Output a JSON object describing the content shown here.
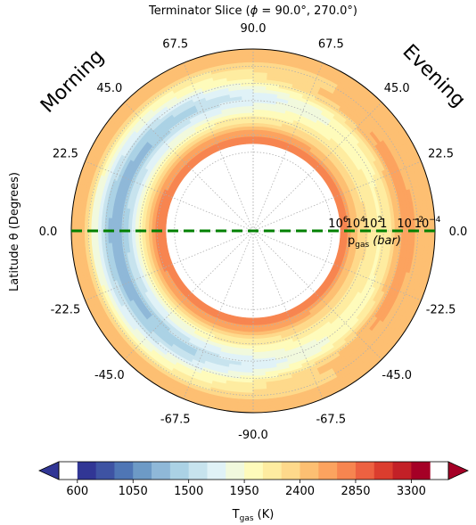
{
  "chart_data": {
    "type": "heatmap",
    "projection": "polar",
    "title_prefix": "Terminator Slice (",
    "title_phi": "ϕ",
    "title_suffix": "  =  90.0°, 270.0°)",
    "ylabel": "Latitude θ (Degrees)",
    "left_region_label": "Morning",
    "right_region_label": "Evening",
    "latitude_ticks": [
      "90.0",
      "67.5",
      "45.0",
      "22.5",
      "0.0",
      "-22.5",
      "-45.0",
      "-67.5",
      "-90.0"
    ],
    "latitude_tick_values": [
      90,
      67.5,
      45,
      22.5,
      0,
      -22.5,
      -45,
      -67.5,
      -90
    ],
    "pressure_ticks": [
      {
        "base": "10",
        "exp": "6",
        "log10_bar": 6
      },
      {
        "base": "10",
        "exp": "4",
        "log10_bar": 4
      },
      {
        "base": "10",
        "exp": "2",
        "log10_bar": 2
      },
      {
        "base": "1",
        "exp": "",
        "log10_bar": 0
      },
      {
        "base": "10",
        "exp": "−2",
        "log10_bar": -2
      },
      {
        "base": "10",
        "exp": "−4",
        "log10_bar": -4
      }
    ],
    "pressure_axis_label": "p",
    "pressure_axis_sub": "gas",
    "pressure_axis_unit": "(bar)",
    "log10_pressure_range": [
      -6,
      8
    ],
    "equator_latitude": 0,
    "equator_line_color": "#008000",
    "colorbar_label": "T",
    "colorbar_label_sub": "gas",
    "colorbar_unit": " (K)",
    "colorbar_ticks": [
      "600",
      "1050",
      "1500",
      "1950",
      "2400",
      "2850",
      "3300"
    ],
    "colorbar_tick_values": [
      600,
      1050,
      1500,
      1950,
      2400,
      2850,
      3300
    ],
    "colorbar_levels": [
      450,
      600,
      750,
      900,
      1050,
      1200,
      1350,
      1500,
      1650,
      1800,
      1950,
      2100,
      2250,
      2400,
      2550,
      2700,
      2850,
      3000,
      3150,
      3300,
      3450,
      3600
    ],
    "colorbar_extend": "both",
    "colormap": [
      "#313695",
      "#3e53a3",
      "#4f76b5",
      "#6d9ac6",
      "#8fb8d8",
      "#abd2e5",
      "#c7e3ee",
      "#e0f2f7",
      "#f1f9dd",
      "#fefbbb",
      "#feeca0",
      "#fed98b",
      "#fdbf72",
      "#fca35f",
      "#f78550",
      "#ed6141",
      "#db3d2e",
      "#c32027",
      "#a50026"
    ],
    "temperature_profile": {
      "description_units": "T (K) vs log10 pressure (bar) at equator",
      "evening_side": [
        {
          "log10_p": -4.5,
          "T": 2250
        },
        {
          "log10_p": -3.5,
          "T": 2400
        },
        {
          "log10_p": -2.5,
          "T": 2550
        },
        {
          "log10_p": -1.5,
          "T": 2300
        },
        {
          "log10_p": -0.5,
          "T": 2000
        },
        {
          "log10_p": 0.5,
          "T": 1950
        },
        {
          "log10_p": 1.5,
          "T": 2050
        },
        {
          "log10_p": 2.5,
          "T": 2150
        },
        {
          "log10_p": 3.5,
          "T": 2350
        },
        {
          "log10_p": 4.5,
          "T": 2600
        }
      ],
      "morning_side": [
        {
          "log10_p": -4.5,
          "T": 2250
        },
        {
          "log10_p": -3.5,
          "T": 1800
        },
        {
          "log10_p": -2.5,
          "T": 1500
        },
        {
          "log10_p": -1.5,
          "T": 1200
        },
        {
          "log10_p": -0.5,
          "T": 1050
        },
        {
          "log10_p": 0.5,
          "T": 1350
        },
        {
          "log10_p": 1.5,
          "T": 1650
        },
        {
          "log10_p": 2.5,
          "T": 2050
        },
        {
          "log10_p": 3.5,
          "T": 2450
        },
        {
          "log10_p": 4.5,
          "T": 2650
        }
      ]
    }
  }
}
